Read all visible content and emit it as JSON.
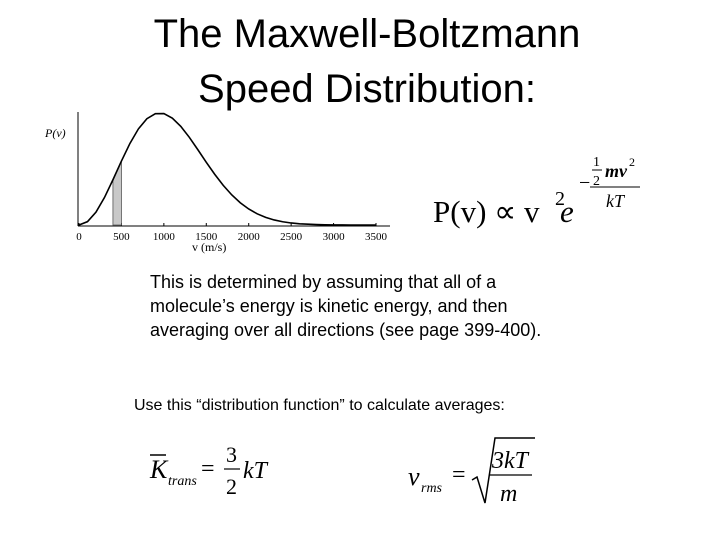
{
  "title_lines": [
    "The Maxwell-Boltzmann",
    "Speed Distribution:"
  ],
  "paragraph_lines": [
    "This is determined by assuming that all of a",
    "molecule’s energy is kinetic energy, and then",
    "averaging over all directions (see page 399-400)."
  ],
  "instruction": "Use this “distribution function” to calculate averages:",
  "equations": {
    "distribution": {
      "lhs": "P(v) ∝ v",
      "power": "2",
      "base": "e",
      "sign": "−",
      "coef_num": "1",
      "coef_den": "2",
      "num": "mv",
      "num_power": "2",
      "den": "kT"
    },
    "kinetic": {
      "symbol": "K",
      "subscript": "trans",
      "equals": "=",
      "num": "3",
      "den": "2",
      "rest": "kT"
    },
    "rms": {
      "symbol": "v",
      "subscript": "rms",
      "equals": "=",
      "num": "3kT",
      "den": "m"
    }
  },
  "chart_data": {
    "type": "line",
    "ylabel": "P(v)",
    "xlabel": "v (m/s)",
    "x": [
      0,
      100,
      200,
      300,
      400,
      500,
      600,
      700,
      800,
      900,
      1000,
      1100,
      1200,
      1300,
      1400,
      1500,
      1600,
      1700,
      1800,
      1900,
      2000,
      2100,
      2200,
      2300,
      2400,
      2500,
      2600,
      2700,
      2800,
      2900,
      3000,
      3100,
      3200,
      3300,
      3400,
      3500
    ],
    "values": [
      0,
      0.03,
      0.115,
      0.245,
      0.404,
      0.571,
      0.728,
      0.858,
      0.949,
      0.994,
      0.995,
      0.954,
      0.88,
      0.783,
      0.673,
      0.56,
      0.452,
      0.354,
      0.269,
      0.199,
      0.143,
      0.1,
      0.068,
      0.045,
      0.029,
      0.018,
      0.011,
      0.007,
      0.004,
      0.002,
      0.001,
      0.001,
      0,
      0,
      0,
      0
    ],
    "color": "#000000",
    "shade_color": "#c8c8c8",
    "shaded_range": [
      400,
      500
    ],
    "xlim": [
      0,
      3500
    ],
    "ylim": [
      0,
      1
    ],
    "xticks": [
      0,
      500,
      1000,
      1500,
      2000,
      2500,
      3000,
      3500
    ]
  }
}
